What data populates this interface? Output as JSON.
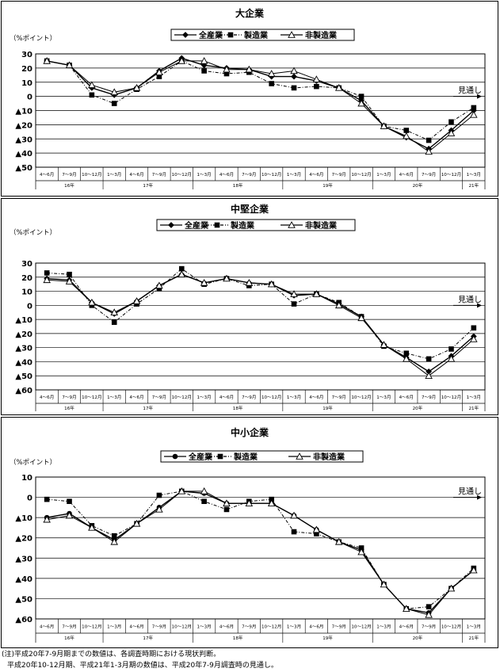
{
  "chart_data": [
    {
      "type": "line",
      "title": "大企業",
      "ylabel": "（%ポイント）",
      "ylim": [
        -50,
        30
      ],
      "yticks": [
        30,
        20,
        10,
        0,
        -10,
        -20,
        -30,
        -40,
        -50
      ],
      "ytick_labels": [
        "30",
        "20",
        "10",
        "0",
        "▲10",
        "▲20",
        "▲30",
        "▲40",
        "▲50"
      ],
      "categories": [
        "4～6月",
        "7～9月",
        "10～12月",
        "1～3月",
        "4～6月",
        "7～9月",
        "10～12月",
        "1～3月",
        "4～6月",
        "7～9月",
        "10～12月",
        "1～3月",
        "4～6月",
        "7～9月",
        "10～12月",
        "1～3月",
        "4～6月",
        "7～9月",
        "10～12月",
        "1～3月"
      ],
      "year_groups": [
        {
          "label": "16年",
          "start": 0,
          "end": 2
        },
        {
          "label": "17年",
          "start": 3,
          "end": 6
        },
        {
          "label": "18年",
          "start": 7,
          "end": 10
        },
        {
          "label": "19年",
          "start": 11,
          "end": 14
        },
        {
          "label": "20年",
          "start": 15,
          "end": 18
        },
        {
          "label": "21年",
          "start": 19,
          "end": 19
        }
      ],
      "annotation": "見通し",
      "series": [
        {
          "name": "全産業",
          "marker": "diamond",
          "dash": "solid",
          "values": [
            25,
            22,
            6,
            1,
            6,
            18,
            27,
            22,
            20,
            19,
            14,
            14,
            11,
            6,
            -3,
            -21,
            -29,
            -37,
            -24,
            -10
          ]
        },
        {
          "name": "製造業",
          "marker": "square",
          "dash": "dashdot",
          "values": [
            25,
            22,
            1,
            -5,
            5,
            14,
            25,
            18,
            16,
            17,
            9,
            6,
            7,
            6,
            0,
            -21,
            -24,
            -31,
            -18,
            -8
          ]
        },
        {
          "name": "非製造業",
          "marker": "triangle",
          "dash": "solid",
          "values": [
            25,
            22,
            8,
            3,
            6,
            17,
            25,
            25,
            19,
            19,
            16,
            18,
            12,
            6,
            -5,
            -21,
            -28,
            -39,
            -26,
            -13
          ]
        }
      ]
    },
    {
      "type": "line",
      "title": "中堅企業",
      "ylabel": "（%ポイント）",
      "ylim": [
        -60,
        30
      ],
      "yticks": [
        30,
        20,
        10,
        0,
        -10,
        -20,
        -30,
        -40,
        -50,
        -60
      ],
      "ytick_labels": [
        "30",
        "20",
        "10",
        "0",
        "▲10",
        "▲20",
        "▲30",
        "▲40",
        "▲50",
        "▲60"
      ],
      "categories": [
        "4～6月",
        "7～9月",
        "10～12月",
        "1～3月",
        "4～6月",
        "7～9月",
        "10～12月",
        "1～3月",
        "4～6月",
        "7～9月",
        "10～12月",
        "1～3月",
        "4～6月",
        "7～9月",
        "10～12月",
        "1～3月",
        "4～6月",
        "7～9月",
        "10～12月",
        "1～3月"
      ],
      "year_groups": [
        {
          "label": "16年",
          "start": 0,
          "end": 2
        },
        {
          "label": "17年",
          "start": 3,
          "end": 6
        },
        {
          "label": "18年",
          "start": 7,
          "end": 10
        },
        {
          "label": "19年",
          "start": 11,
          "end": 14
        },
        {
          "label": "20年",
          "start": 15,
          "end": 18
        },
        {
          "label": "21年",
          "start": 19,
          "end": 19
        }
      ],
      "annotation": "見通し",
      "series": [
        {
          "name": "全産業",
          "marker": "diamond",
          "dash": "solid",
          "values": [
            19,
            18,
            2,
            -6,
            3,
            14,
            22,
            16,
            19,
            16,
            15,
            7,
            8,
            1,
            -8,
            -28,
            -37,
            -47,
            -36,
            -22
          ]
        },
        {
          "name": "製造業",
          "marker": "square",
          "dash": "dashdot",
          "values": [
            23,
            22,
            0,
            -12,
            1,
            12,
            26,
            15,
            19,
            14,
            15,
            1,
            8,
            2,
            -8,
            -29,
            -34,
            -38,
            -31,
            -16
          ]
        },
        {
          "name": "非製造業",
          "marker": "triangle",
          "dash": "solid",
          "values": [
            18,
            17,
            2,
            -5,
            3,
            14,
            22,
            16,
            19,
            16,
            15,
            8,
            8,
            0,
            -9,
            -28,
            -38,
            -50,
            -38,
            -24
          ]
        }
      ]
    },
    {
      "type": "line",
      "title": "中小企業",
      "ylabel": "（%ポイント）",
      "ylim": [
        -60,
        10
      ],
      "yticks": [
        10,
        0,
        -10,
        -20,
        -30,
        -40,
        -50,
        -60
      ],
      "ytick_labels": [
        "10",
        "0",
        "▲10",
        "▲20",
        "▲30",
        "▲40",
        "▲50",
        "▲60"
      ],
      "categories": [
        "4～6月",
        "7～9月",
        "10～12月",
        "1～3月",
        "4～6月",
        "7～9月",
        "10～12月",
        "1～3月",
        "4～6月",
        "7～9月",
        "10～12月",
        "1～3月",
        "4～6月",
        "7～9月",
        "10～12月",
        "1～3月",
        "4～6月",
        "7～9月",
        "10～12月",
        "1～3月"
      ],
      "year_groups": [
        {
          "label": "16年",
          "start": 0,
          "end": 2
        },
        {
          "label": "17年",
          "start": 3,
          "end": 6
        },
        {
          "label": "18年",
          "start": 7,
          "end": 10
        },
        {
          "label": "19年",
          "start": 11,
          "end": 14
        },
        {
          "label": "20年",
          "start": 15,
          "end": 18
        },
        {
          "label": "21年",
          "start": 19,
          "end": 19
        }
      ],
      "annotation": "見通し",
      "series": [
        {
          "name": "全産業",
          "marker": "circle",
          "dash": "solid",
          "values": [
            -10,
            -8,
            -15,
            -21,
            -13,
            -5,
            3,
            2,
            -3,
            -3,
            -3,
            -9,
            -16,
            -22,
            -26,
            -43,
            -55,
            -57,
            -45,
            -36
          ]
        },
        {
          "name": "製造業",
          "marker": "square",
          "dash": "dashdot",
          "values": [
            -1,
            -2,
            -14,
            -19,
            -13,
            1,
            3,
            -2,
            -6,
            -2,
            -1,
            -17,
            -18,
            -22,
            -25,
            -43,
            -55,
            -54,
            -45,
            -35
          ]
        },
        {
          "name": "非製造業",
          "marker": "triangle",
          "dash": "solid",
          "values": [
            -11,
            -9,
            -15,
            -22,
            -13,
            -6,
            3,
            3,
            -3,
            -3,
            -3,
            -9,
            -16,
            -22,
            -27,
            -43,
            -55,
            -58,
            -45,
            -36
          ]
        }
      ]
    }
  ],
  "notes": [
    "(注)平成20年7-9月期までの数値は、各調査時期における現状判断。",
    "平成20年10-12月期、平成21年1-3月期の数値は、平成20年7-9月調査時の見通し。"
  ]
}
